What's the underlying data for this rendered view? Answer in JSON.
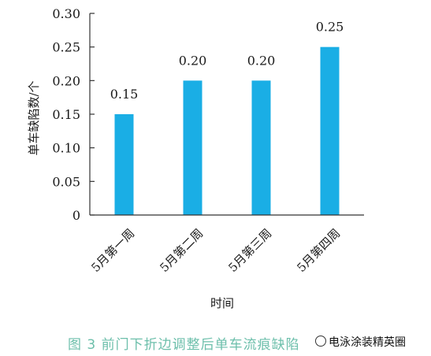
{
  "chart_data": {
    "type": "bar",
    "categories": [
      "5月第一周",
      "5月第二周",
      "5月第三周",
      "5月第四周"
    ],
    "values": [
      0.15,
      0.2,
      0.2,
      0.25
    ],
    "data_labels": [
      "0.15",
      "0.20",
      "0.20",
      "0.25"
    ],
    "ylabel": "单车缺陷数/个",
    "xlabel": "时间",
    "ylim": [
      0,
      0.3
    ],
    "yticks": [
      0,
      0.05,
      0.1,
      0.15,
      0.2,
      0.25,
      0.3
    ],
    "ytick_labels": [
      "0",
      "0.05",
      "0.10",
      "0.15",
      "0.20",
      "0.25",
      "0.30"
    ],
    "bar_color": "#1aaee5",
    "grid": false
  },
  "caption": "图 3   前门下折边调整后单车流痕缺陷",
  "watermark": "电泳涂装精英圈"
}
